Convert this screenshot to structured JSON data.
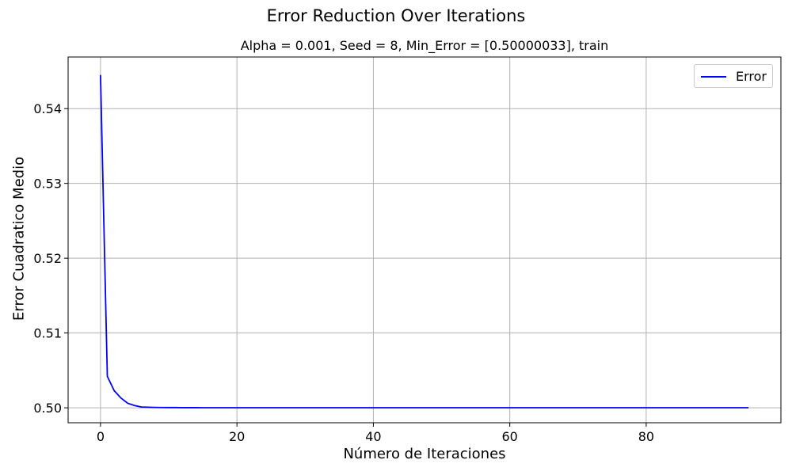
{
  "chart_data": {
    "type": "line",
    "suptitle": "Error Reduction Over Iterations",
    "title": "Alpha = 0.001, Seed = 8, Min_Error = [0.50000033], train",
    "xlabel": "Número de Iteraciones",
    "ylabel": "Error Cuadratico Medio",
    "xlim": [
      -4.75,
      99.75
    ],
    "ylim": [
      0.498,
      0.5469
    ],
    "xticks": [
      0,
      20,
      40,
      60,
      80
    ],
    "yticks": [
      0.5,
      0.51,
      0.52,
      0.53,
      0.54
    ],
    "ytick_labels": [
      "0.50",
      "0.51",
      "0.52",
      "0.53",
      "0.54"
    ],
    "grid": true,
    "legend_position": "top-right",
    "series": [
      {
        "name": "Error",
        "color": "#0000ff",
        "x": [
          0,
          1,
          2,
          3,
          4,
          5,
          6,
          7,
          8,
          9,
          10,
          11,
          12,
          13,
          14,
          15,
          16,
          17,
          18,
          19,
          20,
          21,
          22,
          23,
          24,
          25,
          26,
          27,
          28,
          29,
          30,
          31,
          32,
          33,
          34,
          35,
          36,
          37,
          38,
          39,
          40,
          41,
          42,
          43,
          44,
          45,
          46,
          47,
          48,
          49,
          50,
          51,
          52,
          53,
          54,
          55,
          56,
          57,
          58,
          59,
          60,
          61,
          62,
          63,
          64,
          65,
          66,
          67,
          68,
          69,
          70,
          71,
          72,
          73,
          74,
          75,
          76,
          77,
          78,
          79,
          80,
          81,
          82,
          83,
          84,
          85,
          86,
          87,
          88,
          89,
          90,
          91,
          92,
          93,
          94,
          95
        ],
        "y": [
          0.5445,
          0.5042,
          0.5023,
          0.5013,
          0.5006,
          0.5003,
          0.5001,
          0.50008,
          0.50005,
          0.50004,
          0.50003,
          0.50003,
          0.50002,
          0.50002,
          0.50002,
          0.50001,
          0.50001,
          0.50001,
          0.50001,
          0.50001,
          0.50001,
          0.50001,
          0.50001,
          0.50001,
          0.50001,
          0.50001,
          0.50001,
          0.50001,
          0.50001,
          0.50001,
          0.50001,
          0.50001,
          0.50001,
          0.50001,
          0.50001,
          0.50001,
          0.50001,
          0.50001,
          0.50001,
          0.50001,
          0.50001,
          0.50001,
          0.50001,
          0.50001,
          0.50001,
          0.50001,
          0.50001,
          0.50001,
          0.50001,
          0.50001,
          0.50001,
          0.50001,
          0.50001,
          0.50001,
          0.50001,
          0.50001,
          0.50001,
          0.50001,
          0.50001,
          0.50001,
          0.50001,
          0.50001,
          0.50001,
          0.50001,
          0.50001,
          0.50001,
          0.50001,
          0.50001,
          0.50001,
          0.50001,
          0.50001,
          0.50001,
          0.50001,
          0.50001,
          0.50001,
          0.50001,
          0.50001,
          0.50001,
          0.50001,
          0.50001,
          0.50001,
          0.50001,
          0.50001,
          0.50001,
          0.50001,
          0.50001,
          0.50001,
          0.50001,
          0.50001,
          0.50001,
          0.50001,
          0.50001,
          0.50001,
          0.50001,
          0.50001,
          0.50001
        ]
      }
    ]
  }
}
